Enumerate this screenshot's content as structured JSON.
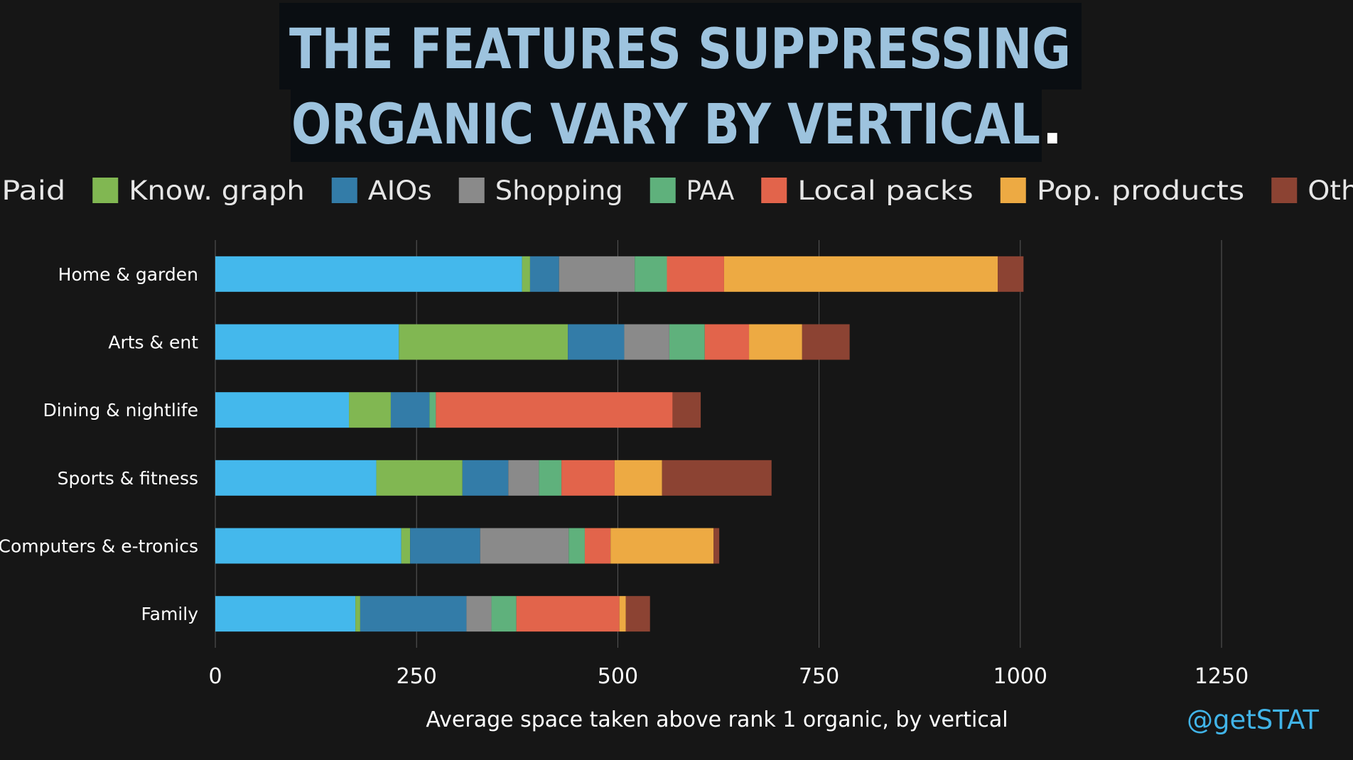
{
  "chart_data": {
    "type": "bar",
    "orientation": "horizontal",
    "stacked": true,
    "title_lines": [
      "THE FEATURES SUPPRESSING",
      "ORGANIC VARY BY VERTICAL"
    ],
    "title_period": ".",
    "xlabel": "Average space taken above rank 1 organic, by vertical",
    "ylabel": "",
    "xlim": [
      0,
      1250
    ],
    "xticks": [
      0,
      250,
      500,
      750,
      1000,
      1250
    ],
    "grid": true,
    "legend_position": "top",
    "categories": [
      "Home & garden",
      "Arts & ent",
      "Dining & nightlife",
      "Sports & fitness",
      "Computers & e-tronics",
      "Family"
    ],
    "series": [
      {
        "name": "Paid",
        "color": "#44b8ec",
        "values": [
          381,
          228,
          166,
          200,
          231,
          174
        ]
      },
      {
        "name": "Know. graph",
        "color": "#81b752",
        "values": [
          10,
          210,
          52,
          107,
          11,
          6
        ]
      },
      {
        "name": "AIOs",
        "color": "#337ca8",
        "values": [
          36,
          70,
          48,
          57,
          87,
          132
        ]
      },
      {
        "name": "Shopping",
        "color": "#8a8a8a",
        "values": [
          94,
          56,
          0,
          38,
          110,
          31
        ]
      },
      {
        "name": "PAA",
        "color": "#5fb17c",
        "values": [
          40,
          44,
          8,
          28,
          20,
          31
        ]
      },
      {
        "name": "Local packs",
        "color": "#e2644b",
        "values": [
          71,
          55,
          294,
          66,
          32,
          128
        ]
      },
      {
        "name": "Pop. products",
        "color": "#edaa43",
        "values": [
          340,
          66,
          0,
          59,
          128,
          8
        ]
      },
      {
        "name": "Other",
        "color": "#8c4333",
        "values": [
          32,
          59,
          35,
          136,
          7,
          30
        ]
      }
    ],
    "attribution": "@getSTAT"
  }
}
